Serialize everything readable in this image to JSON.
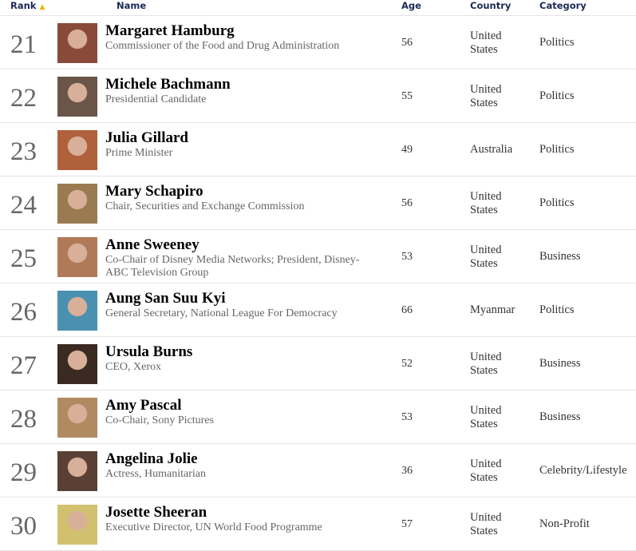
{
  "header": {
    "rank": "Rank",
    "sort_icon": "triangle-up",
    "name": "Name",
    "age": "Age",
    "country": "Country",
    "category": "Category",
    "sort_color": "#f0b400"
  },
  "rows": [
    {
      "rank": "21",
      "name": "Margaret Hamburg",
      "title": "Commissioner of the Food and Drug Administration",
      "age": "56",
      "country": "United States",
      "category": "Politics",
      "photo_color": "#8a4a3a"
    },
    {
      "rank": "22",
      "name": "Michele Bachmann",
      "title": "Presidential Candidate",
      "age": "55",
      "country": "United States",
      "category": "Politics",
      "photo_color": "#6a5548"
    },
    {
      "rank": "23",
      "name": "Julia Gillard",
      "title": "Prime Minister",
      "age": "49",
      "country": "Australia",
      "category": "Politics",
      "photo_color": "#b0603a"
    },
    {
      "rank": "24",
      "name": "Mary Schapiro",
      "title": "Chair, Securities and Exchange Commission",
      "age": "56",
      "country": "United States",
      "category": "Politics",
      "photo_color": "#9a7a50"
    },
    {
      "rank": "25",
      "name": "Anne Sweeney",
      "title": "Co-Chair of Disney Media Networks; President, Disney-ABC Television Group",
      "age": "53",
      "country": "United States",
      "category": "Business",
      "photo_color": "#b07a58"
    },
    {
      "rank": "26",
      "name": "Aung San Suu Kyi",
      "title": "General Secretary, National League For Democracy",
      "age": "66",
      "country": "Myanmar",
      "category": "Politics",
      "photo_color": "#4a90b0"
    },
    {
      "rank": "27",
      "name": "Ursula Burns",
      "title": "CEO, Xerox",
      "age": "52",
      "country": "United States",
      "category": "Business",
      "photo_color": "#3a2a22"
    },
    {
      "rank": "28",
      "name": "Amy Pascal",
      "title": "Co-Chair, Sony Pictures",
      "age": "53",
      "country": "United States",
      "category": "Business",
      "photo_color": "#b08a60"
    },
    {
      "rank": "29",
      "name": "Angelina Jolie",
      "title": "Actress, Humanitarian",
      "age": "36",
      "country": "United States",
      "category": "Celebrity/Lifestyle",
      "photo_color": "#5a4034"
    },
    {
      "rank": "30",
      "name": "Josette Sheeran",
      "title": "Executive Director, UN World Food Programme",
      "age": "57",
      "country": "United States",
      "category": "Non-Profit",
      "photo_color": "#d0c070"
    }
  ]
}
